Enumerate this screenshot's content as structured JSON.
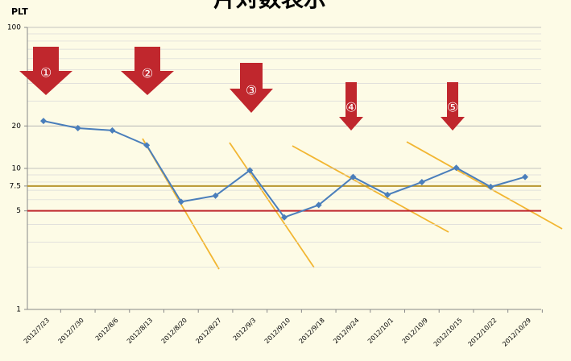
{
  "chart_data": {
    "type": "line",
    "title": "片対数表示",
    "y_label": "PLT",
    "categories": [
      "2012/7/23",
      "2012/7/30",
      "2012/8/6",
      "2012/8/13",
      "2012/8/20",
      "2012/8/27",
      "2012/9/3",
      "2012/9/10",
      "2012/9/18",
      "2012/9/24",
      "2012/10/1",
      "2012/10/9",
      "2012/10/15",
      "2012/10/22",
      "2012/10/29"
    ],
    "series": [
      {
        "name": "PLT",
        "color": "#4a7ebb",
        "values": [
          21.7,
          19.3,
          18.6,
          14.6,
          5.8,
          6.4,
          9.7,
          4.5,
          5.5,
          8.7,
          6.5,
          8.0,
          10.1,
          7.4,
          8.7
        ]
      }
    ],
    "ylim": [
      1,
      100
    ],
    "yticks": [
      1,
      5,
      7.5,
      10,
      20,
      100
    ],
    "log_scale": true,
    "grid": true,
    "reference_lines": [
      {
        "value": 7.5,
        "color": "#b8962e"
      },
      {
        "value": 5,
        "color": "#c0272d"
      }
    ],
    "annotations": [
      "①",
      "②",
      "③",
      "④",
      "⑤"
    ]
  }
}
